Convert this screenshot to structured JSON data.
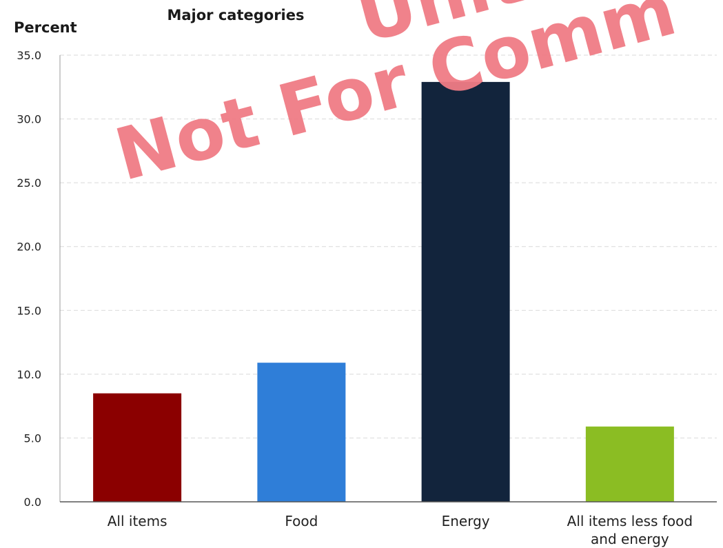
{
  "chart_data": {
    "type": "bar",
    "title": "Major categories",
    "ylabel": "Percent",
    "xlabel": "",
    "categories": [
      "All items",
      "Food",
      "Energy",
      "All items less food and energy"
    ],
    "category_label_lines": [
      [
        "All items"
      ],
      [
        "Food"
      ],
      [
        "Energy"
      ],
      [
        "All items less food",
        "and energy"
      ]
    ],
    "values": [
      8.5,
      10.9,
      32.9,
      5.9
    ],
    "bar_colors": [
      "#8b0000",
      "#2f7ed8",
      "#12243c",
      "#8bbd23"
    ],
    "yticks": [
      "0.0",
      "5.0",
      "10.0",
      "15.0",
      "20.0",
      "25.0",
      "30.0",
      "35.0"
    ],
    "ylim": [
      0,
      35
    ],
    "grid": true
  },
  "watermark": {
    "line1": "Unit",
    "line2": "Not For Comm",
    "color": "#f07c85"
  }
}
